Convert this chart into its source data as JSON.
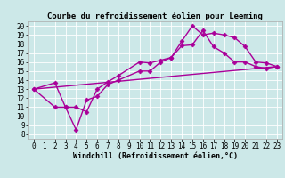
{
  "title": "Courbe du refroidissement éolien pour Leeming",
  "xlabel": "Windchill (Refroidissement éolien,°C)",
  "background_color": "#cce8e8",
  "grid_color": "#ffffff",
  "line_color": "#aa0099",
  "xlim": [
    -0.5,
    23.5
  ],
  "ylim": [
    7.5,
    20.5
  ],
  "xticks": [
    0,
    1,
    2,
    3,
    4,
    5,
    6,
    7,
    8,
    9,
    10,
    11,
    12,
    13,
    14,
    15,
    16,
    17,
    18,
    19,
    20,
    21,
    22,
    23
  ],
  "yticks": [
    8,
    9,
    10,
    11,
    12,
    13,
    14,
    15,
    16,
    17,
    18,
    19,
    20
  ],
  "line1_x": [
    0,
    2,
    3,
    4,
    5,
    6,
    7,
    8,
    10,
    11,
    12,
    13,
    14,
    15,
    16,
    17,
    18,
    19,
    20,
    21,
    22,
    23
  ],
  "line1_y": [
    13,
    13.7,
    11.0,
    11.0,
    10.5,
    13.0,
    13.8,
    14.5,
    16.0,
    15.9,
    16.2,
    16.5,
    18.3,
    20.0,
    19.0,
    19.2,
    19.0,
    18.7,
    17.7,
    16.0,
    15.9,
    15.5
  ],
  "line2_x": [
    0,
    2,
    3,
    4,
    5,
    6,
    7,
    8,
    10,
    11,
    12,
    13,
    14,
    15,
    16,
    17,
    18,
    19,
    20,
    21,
    22,
    23
  ],
  "line2_y": [
    13,
    11.0,
    11.0,
    8.5,
    11.8,
    12.2,
    13.5,
    14.0,
    15.0,
    15.0,
    16.0,
    16.5,
    17.8,
    17.9,
    19.5,
    17.7,
    17.0,
    16.0,
    16.0,
    15.5,
    15.3,
    15.5
  ],
  "line3_x": [
    0,
    23
  ],
  "line3_y": [
    13.0,
    15.5
  ],
  "marker": "D",
  "markersize": 2.5,
  "linewidth": 1.0,
  "title_fontsize": 6.5,
  "axis_fontsize": 6.0,
  "tick_fontsize": 5.5
}
